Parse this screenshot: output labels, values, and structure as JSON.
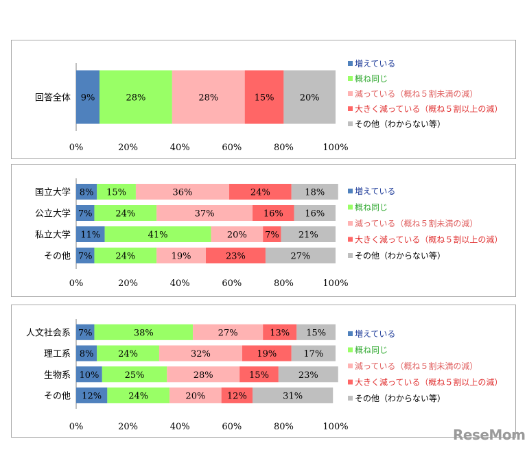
{
  "colors": {
    "increase": "#4f81bd",
    "same": "#99ff66",
    "decrease": "#ffb3b3",
    "big_decrease": "#ff6666",
    "other": "#bfbfbf",
    "legend_text": [
      "#1f3c99",
      "#33aa33",
      "#e06060",
      "#e03030",
      "#000000"
    ]
  },
  "watermark": "ReseMom",
  "chart_data": [
    {
      "type": "bar",
      "orientation": "horizontal",
      "stacked": "percent",
      "categories": [
        "回答全体"
      ],
      "series": [
        {
          "name": "増えている",
          "values": [
            9
          ]
        },
        {
          "name": "概ね同じ",
          "values": [
            28
          ]
        },
        {
          "name": "減っている（概ね５割未満の減）",
          "values": [
            28
          ]
        },
        {
          "name": "大きく減っている（概ね５割以上の減）",
          "values": [
            15
          ]
        },
        {
          "name": "その他（わからない等）",
          "values": [
            20
          ]
        }
      ],
      "xticks": [
        "0%",
        "20%",
        "40%",
        "60%",
        "80%",
        "100%"
      ],
      "xlim": [
        0,
        100
      ],
      "legend": "right"
    },
    {
      "type": "bar",
      "orientation": "horizontal",
      "stacked": "percent",
      "categories": [
        "国立大学",
        "公立大学",
        "私立大学",
        "その他"
      ],
      "series": [
        {
          "name": "増えている",
          "values": [
            8,
            7,
            11,
            7
          ]
        },
        {
          "name": "概ね同じ",
          "values": [
            15,
            24,
            41,
            24
          ]
        },
        {
          "name": "減っている（概ね５割未満の減）",
          "values": [
            36,
            37,
            20,
            19
          ]
        },
        {
          "name": "大きく減っている（概ね５割以上の減）",
          "values": [
            24,
            16,
            7,
            23
          ]
        },
        {
          "name": "その他（わからない等）",
          "values": [
            18,
            16,
            21,
            27
          ]
        }
      ],
      "xticks": [
        "0%",
        "20%",
        "40%",
        "60%",
        "80%",
        "100%"
      ],
      "xlim": [
        0,
        100
      ],
      "legend": "right"
    },
    {
      "type": "bar",
      "orientation": "horizontal",
      "stacked": "percent",
      "categories": [
        "人文社会系",
        "理工系",
        "生物系",
        "その他"
      ],
      "series": [
        {
          "name": "増えている",
          "values": [
            7,
            8,
            10,
            12
          ]
        },
        {
          "name": "概ね同じ",
          "values": [
            38,
            24,
            25,
            24
          ]
        },
        {
          "name": "減っている（概ね５割未満の減）",
          "values": [
            27,
            32,
            28,
            20
          ]
        },
        {
          "name": "大きく減っている（概ね５割以上の減）",
          "values": [
            13,
            19,
            15,
            12
          ]
        },
        {
          "name": "その他（わからない等）",
          "values": [
            15,
            17,
            23,
            31
          ]
        }
      ],
      "xticks": [
        "0%",
        "20%",
        "40%",
        "60%",
        "80%",
        "100%"
      ],
      "xlim": [
        0,
        100
      ],
      "legend": "right"
    }
  ]
}
